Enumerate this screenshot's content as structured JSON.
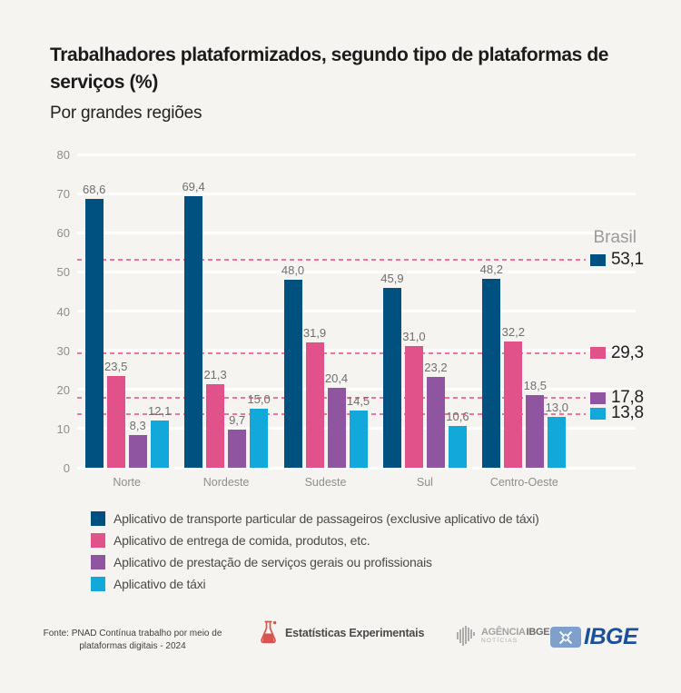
{
  "header": {
    "title": "Trabalhadores plataformizados, segundo tipo de plataformas de serviços (%)",
    "subtitle": "Por grandes regiões"
  },
  "chart_data": {
    "type": "bar",
    "title": "Trabalhadores plataformizados, segundo tipo de plataformas de serviços (%)",
    "subtitle": "Por grandes regiões",
    "categories": [
      "Norte",
      "Nordeste",
      "Sudeste",
      "Sul",
      "Centro-Oeste"
    ],
    "series": [
      {
        "name": "Aplicativo de transporte particular de passageiros (exclusive aplicativo de táxi)",
        "color": "#00517F",
        "values": [
          68.6,
          69.4,
          48.0,
          45.9,
          48.2
        ],
        "brasil_value": 53.1
      },
      {
        "name": "Aplicativo de entrega de comida, produtos, etc.",
        "color": "#E05289",
        "values": [
          23.5,
          21.3,
          31.9,
          31.0,
          32.2
        ],
        "brasil_value": 29.3
      },
      {
        "name": "Aplicativo de prestação de serviços gerais ou profissionais",
        "color": "#8F55A0",
        "values": [
          8.3,
          9.7,
          20.4,
          23.2,
          18.5
        ],
        "brasil_value": 17.8
      },
      {
        "name": "Aplicativo de táxi",
        "color": "#12A9DA",
        "values": [
          12.1,
          15.0,
          14.5,
          10.6,
          13.0
        ],
        "brasil_value": 13.8
      }
    ],
    "reference_label": "Brasil",
    "ylim": [
      0,
      80
    ],
    "ytick_step": 10,
    "grid": true,
    "legend_position": "bottom",
    "decimal_separator": ","
  },
  "colors": {
    "background": "#F5F4F1",
    "gridline": "#FFFFFF",
    "dashed_reference_line": "#F2739B",
    "axis_text": "#8E8E8E",
    "value_label": "#6F6F6F",
    "brasil_label": "#9B9B9B",
    "brasil_value_text": "#1F1F1F",
    "title_text": "#1B1B1B",
    "legend_text": "#4A4A4A",
    "experimental_red": "#D9534F",
    "ibge_blue": "#1C4F9C",
    "ibge_square_blue": "#7FA0CC",
    "agencia_gray": "#9A9A9A"
  },
  "footer": {
    "source_lines": [
      "Fonte: PNAD Contínua trabalho por meio de",
      "plataformas digitais - 2024"
    ],
    "experimental_label": "Estatísticas Experimentais",
    "agencia_logo": {
      "word1": "AGÊNCIA",
      "word2": "IBGE",
      "word3": "NOTÍCIAS"
    },
    "ibge_logo_text": "IBGE"
  }
}
